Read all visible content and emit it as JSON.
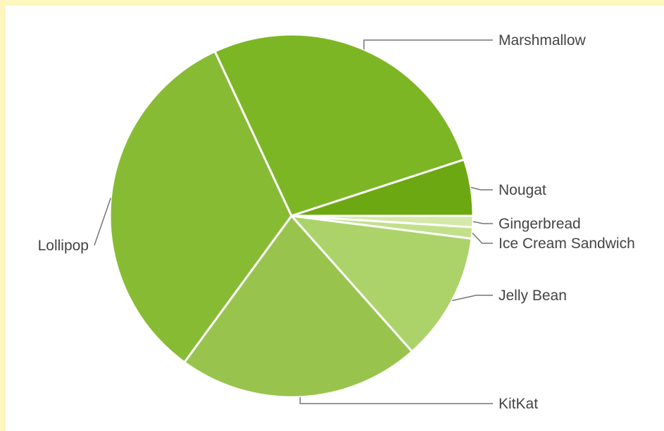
{
  "chart_data": {
    "type": "pie",
    "title": "",
    "slices": [
      {
        "label": "Gingerbread",
        "value": 1.0,
        "color": "#d4e9a9"
      },
      {
        "label": "Ice Cream Sandwich",
        "value": 1.0,
        "color": "#c2e08a"
      },
      {
        "label": "Jelly Bean",
        "value": 11.4,
        "color": "#abd36a"
      },
      {
        "label": "KitKat",
        "value": 21.5,
        "color": "#98c44e"
      },
      {
        "label": "Lollipop",
        "value": 32.9,
        "color": "#88bb34"
      },
      {
        "label": "Marshmallow",
        "value": 26.8,
        "color": "#7cb624"
      },
      {
        "label": "Nougat",
        "value": 5.0,
        "color": "#6ca811"
      }
    ]
  }
}
